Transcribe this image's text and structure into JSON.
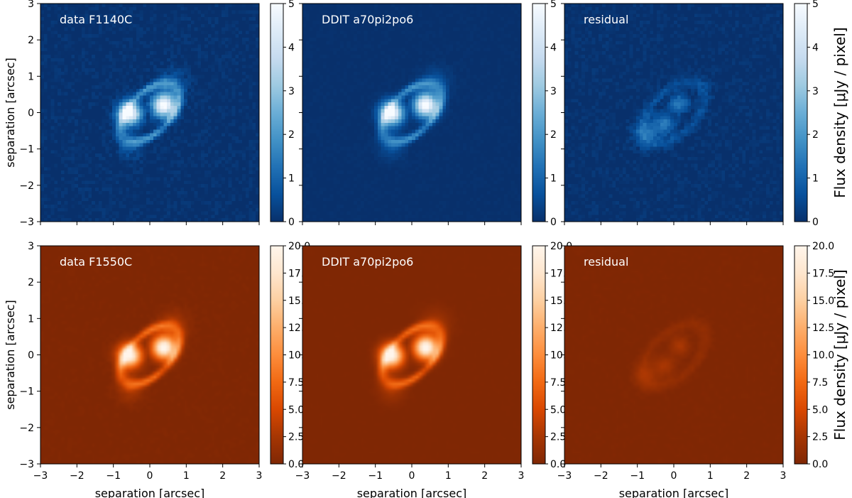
{
  "chart_data": {
    "type": "heatmap",
    "xlabel": "separation [arcsec]",
    "ylabel": "separation [arcsec]",
    "xlim": [
      -3,
      3
    ],
    "ylim": [
      -3,
      3
    ],
    "xticks": [
      "−3",
      "−2",
      "−1",
      "0",
      "1",
      "2",
      "3"
    ],
    "yticks": [
      "−3",
      "−2",
      "−1",
      "0",
      "1",
      "2",
      "3"
    ],
    "colorbar_label": "Flux density [μJy / pixel]",
    "rows": [
      {
        "filter": "F1140C",
        "colormap": "Blues_r",
        "colors": [
          "#08306b",
          "#08519c",
          "#2171b5",
          "#4292c6",
          "#6baed6",
          "#9ecae1",
          "#c6dbef",
          "#deebf7",
          "#f7fbff"
        ],
        "background": "#0b3a7a",
        "vmin": 0,
        "vmax": 5,
        "colorbar_ticks": [
          "0",
          "1",
          "2",
          "3",
          "4",
          "5"
        ],
        "panels": [
          {
            "title": "data F1140C",
            "kind": "model",
            "peak": 5.0,
            "ring": 2.0,
            "noise": 0.35
          },
          {
            "title": "DDIT a70pi2po6",
            "kind": "model",
            "peak": 5.0,
            "ring": 1.8,
            "noise": 0.1
          },
          {
            "title": "residual",
            "kind": "residual",
            "peak": 1.6,
            "ring": 0.6,
            "noise": 0.35
          }
        ]
      },
      {
        "filter": "F1550C",
        "colormap": "Oranges_r",
        "colors": [
          "#7f2704",
          "#a63603",
          "#d94801",
          "#f16913",
          "#fd8d3c",
          "#fdae6b",
          "#fdd0a2",
          "#fee6ce",
          "#fff5eb"
        ],
        "background": "#872c05",
        "vmin": 0,
        "vmax": 20,
        "colorbar_ticks": [
          "0.0",
          "2.5",
          "5.0",
          "7.5",
          "10.0",
          "12.5",
          "15.0",
          "17.5",
          "20.0"
        ],
        "panels": [
          {
            "title": "data F1550C",
            "kind": "model",
            "peak": 20.0,
            "ring": 8.0,
            "noise": 0.5
          },
          {
            "title": "DDIT a70pi2po6",
            "kind": "model",
            "peak": 20.0,
            "ring": 7.5,
            "noise": 0.2
          },
          {
            "title": "residual",
            "kind": "residual",
            "peak": 3.0,
            "ring": 1.2,
            "noise": 0.4
          }
        ]
      }
    ]
  }
}
